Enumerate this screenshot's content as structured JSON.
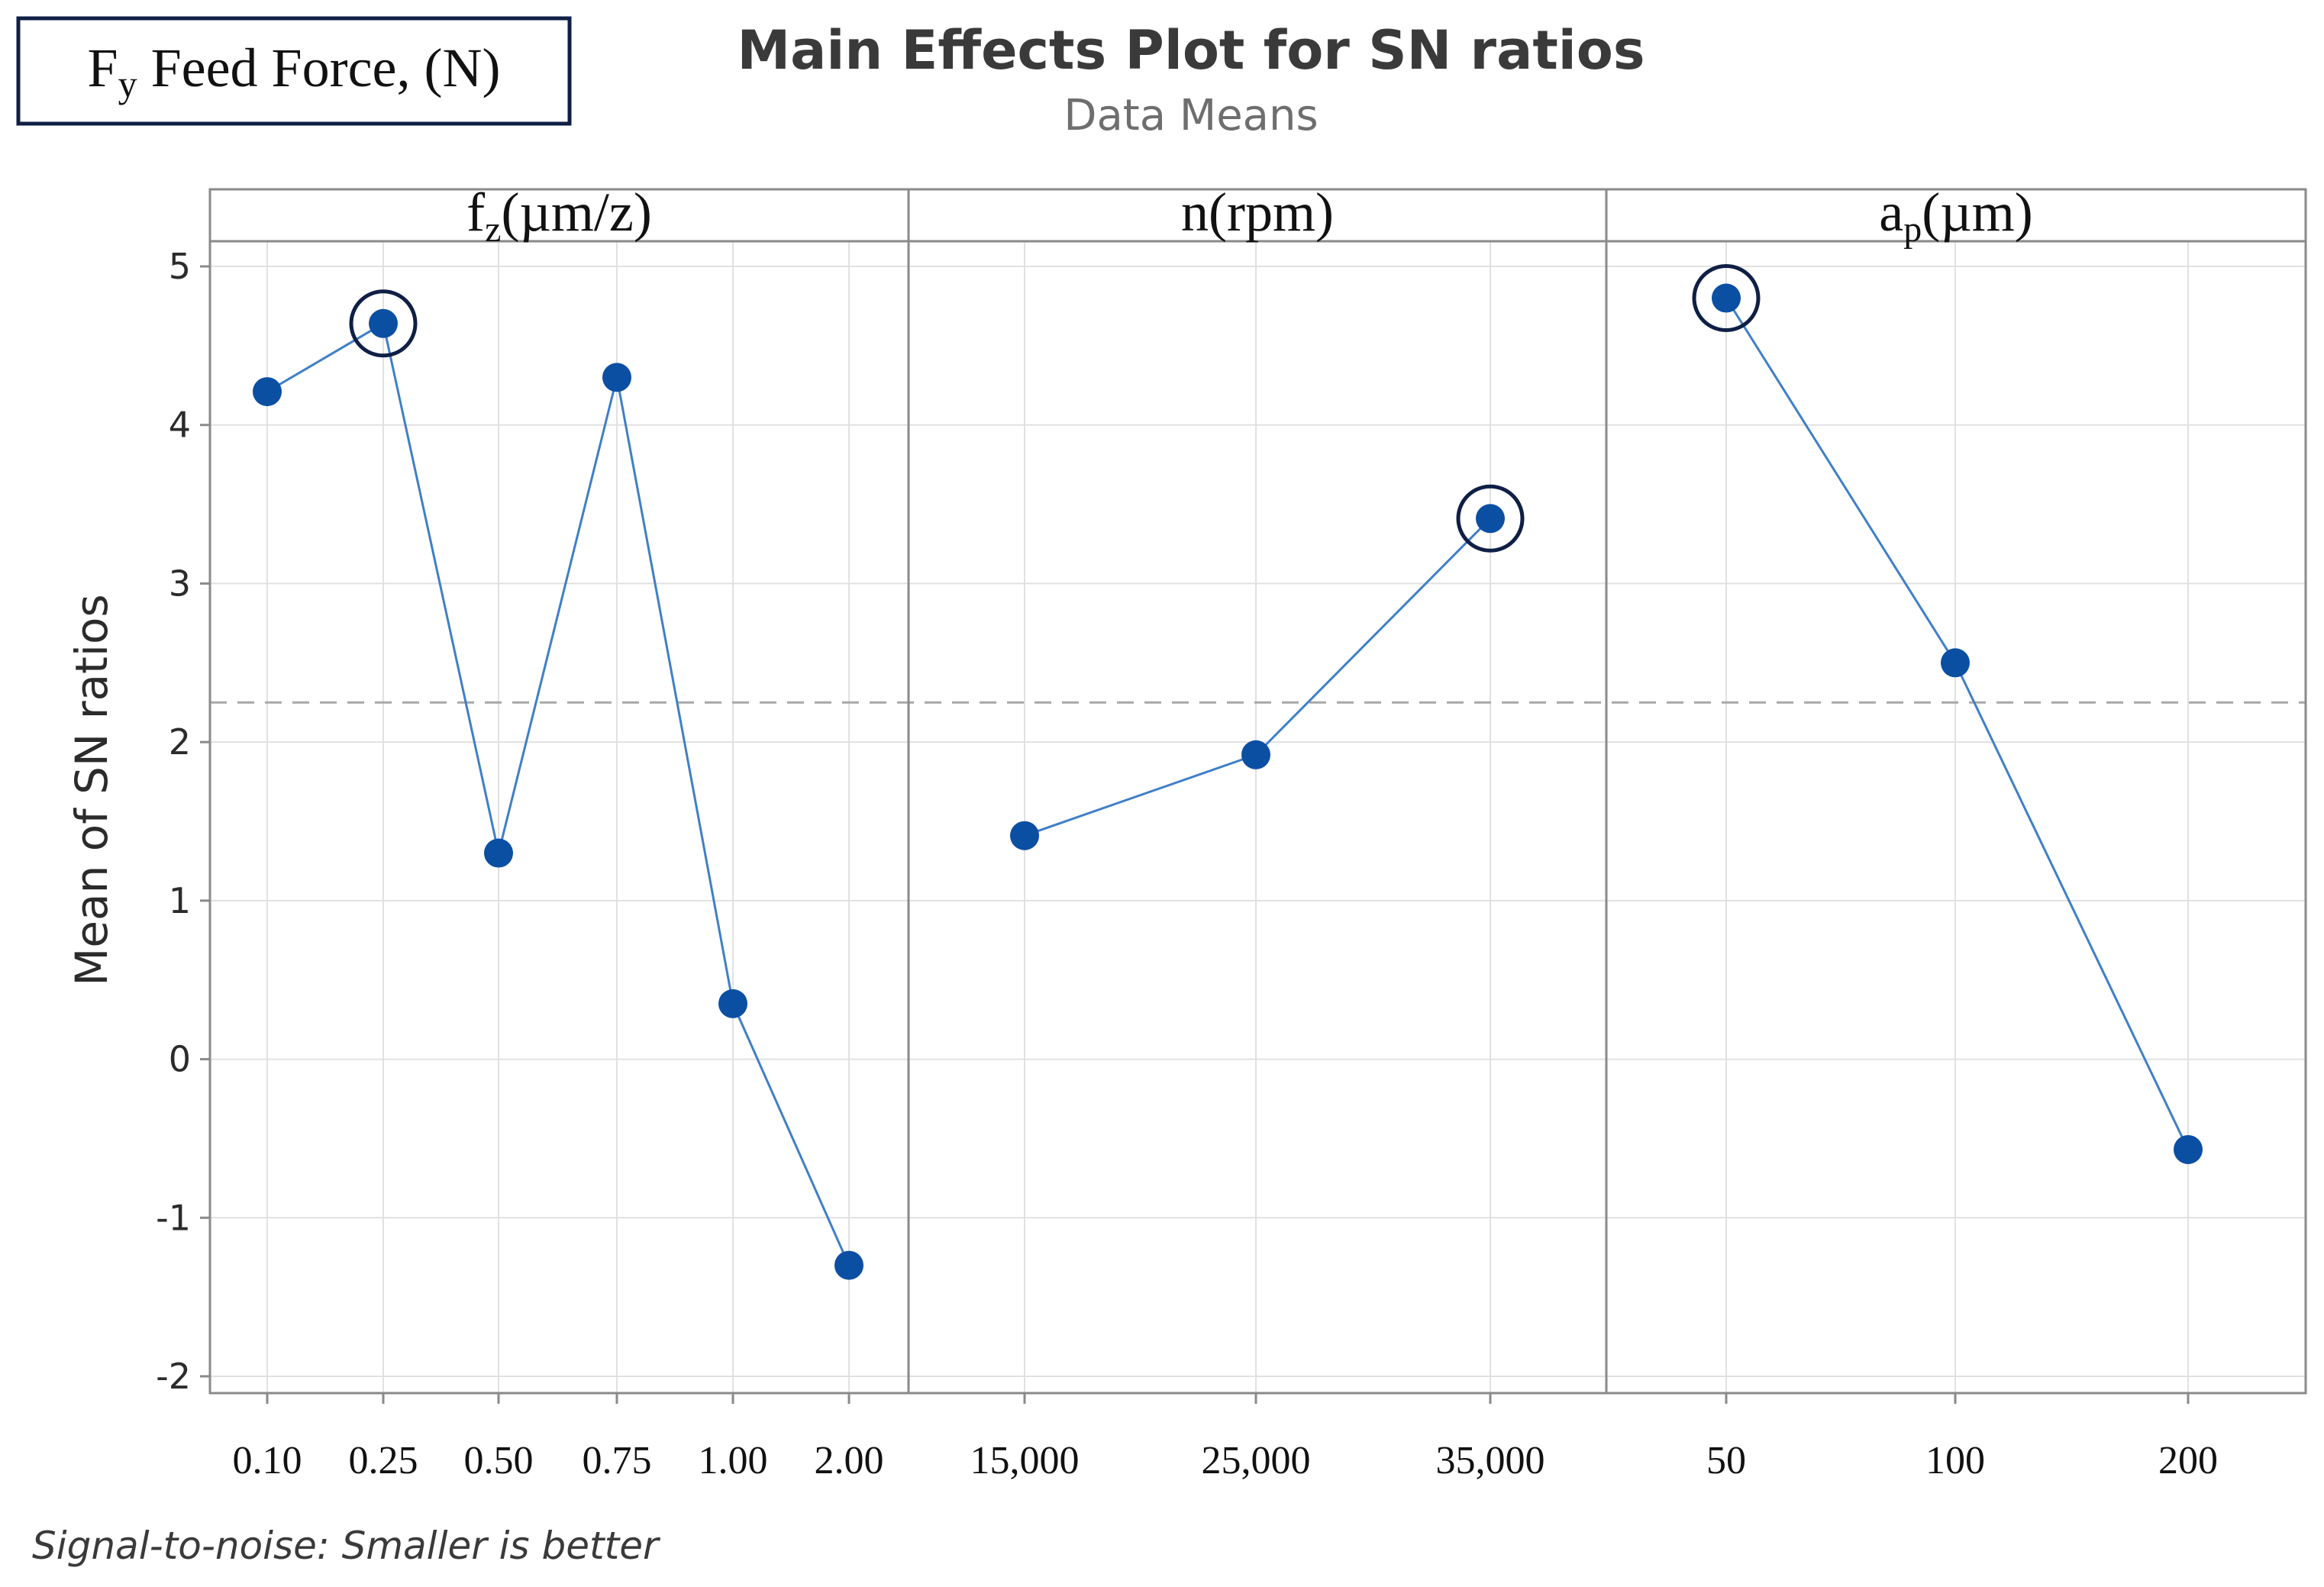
{
  "chart_data": {
    "type": "line",
    "title": "Main Effects Plot for SN ratios",
    "subtitle": "Data Means",
    "response_box": {
      "symbol": "F",
      "subscript": "y",
      "label": " Feed Force, (N)"
    },
    "ylabel": "Mean of SN ratios",
    "ylim": [
      -2.1,
      5.15
    ],
    "yticks": [
      "-2",
      "-1",
      "0",
      "1",
      "2",
      "3",
      "4",
      "5"
    ],
    "reference_mean": 2.25,
    "footnote": "Signal-to-noise: Smaller is better",
    "panels": [
      {
        "header": {
          "main": "f",
          "sub": "z",
          "rest": "(µm/z)"
        },
        "levels": [
          "0.10",
          "0.25",
          "0.50",
          "0.75",
          "1.00",
          "2.00"
        ],
        "values": [
          4.21,
          4.64,
          1.3,
          4.3,
          0.35,
          -1.3
        ],
        "optimal_index": 1
      },
      {
        "header": {
          "main": "n(rpm)",
          "sub": "",
          "rest": ""
        },
        "levels": [
          "15,000",
          "25,000",
          "35,000"
        ],
        "values": [
          1.41,
          1.92,
          3.41
        ],
        "optimal_index": 2
      },
      {
        "header": {
          "main": "a",
          "sub": "p",
          "rest": "(µm)"
        },
        "levels": [
          "50",
          "100",
          "200"
        ],
        "values": [
          4.8,
          2.5,
          -0.57
        ],
        "optimal_index": 0
      }
    ],
    "colors": {
      "line": "#3F7FC8",
      "marker": "#0B4FA3",
      "circle": "#0F1F45",
      "grid": "#E1E1E1",
      "frame": "#8A8A8A",
      "refline": "#A8A8A8",
      "text": "#2B2B2B",
      "subtitle": "#6E6E6E"
    }
  }
}
